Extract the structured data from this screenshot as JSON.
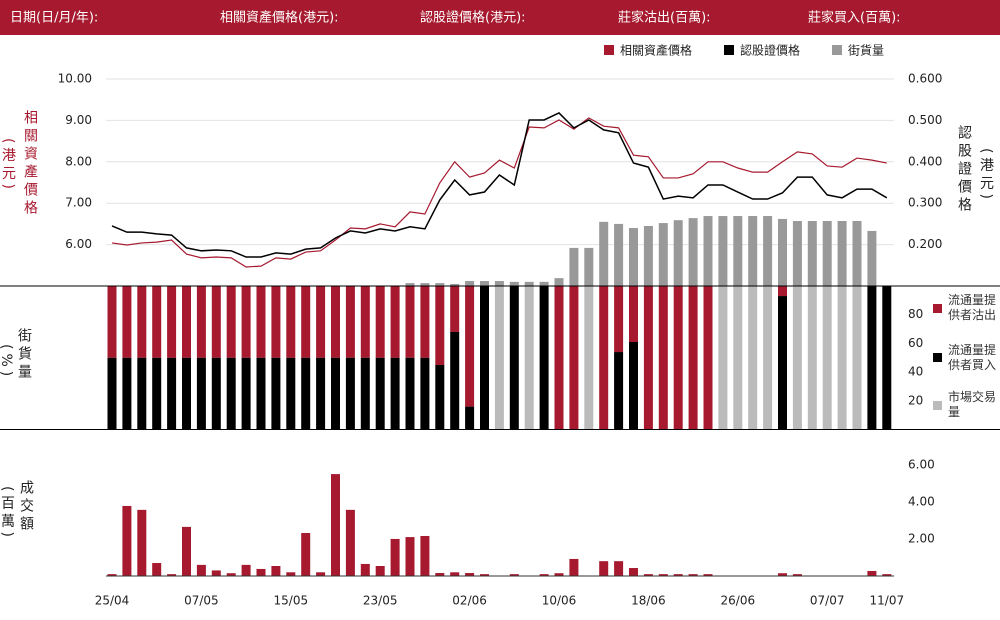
{
  "header": {
    "labels": [
      "日期(日/月/年):",
      "相關資產價格(港元):",
      "認股證價格(港元):",
      "莊家沽出(百萬):",
      "莊家買入(百萬):"
    ]
  },
  "chart_data": [
    {
      "type": "line",
      "y_label": "相關資產價格",
      "y_unit": "(港元)",
      "y2_label": "認股證價格",
      "y2_unit": "(港元)",
      "ylim": [
        5,
        10
      ],
      "yticks": [
        {
          "value": 6,
          "label": "6.00"
        },
        {
          "value": 7,
          "label": "7.00"
        },
        {
          "value": 8,
          "label": "8.00"
        },
        {
          "value": 9,
          "label": "9.00"
        },
        {
          "value": 10,
          "label": "10.00"
        }
      ],
      "y2lim": [
        0.1,
        0.6
      ],
      "y2ticks": [
        {
          "value": 0.2,
          "label": "0.200"
        },
        {
          "value": 0.3,
          "label": "0.300"
        },
        {
          "value": 0.4,
          "label": "0.400"
        },
        {
          "value": 0.5,
          "label": "0.500"
        },
        {
          "value": 0.6,
          "label": "0.600"
        }
      ],
      "grid": true,
      "legend": "top-right",
      "series": [
        {
          "name": "相關資產價格",
          "color": "#a6192e",
          "type": "line",
          "axis": "y",
          "values": [
            6.04,
            5.99,
            6.04,
            6.06,
            6.11,
            5.77,
            5.68,
            5.7,
            5.68,
            5.46,
            5.48,
            5.68,
            5.65,
            5.82,
            5.85,
            6.11,
            6.4,
            6.38,
            6.5,
            6.43,
            6.79,
            6.74,
            7.49,
            8.0,
            7.63,
            7.73,
            8.04,
            7.85,
            8.84,
            8.82,
            9.01,
            8.79,
            9.06,
            8.86,
            8.82,
            8.16,
            8.12,
            7.61,
            7.61,
            7.71,
            8.0,
            8.0,
            7.85,
            7.75,
            7.75,
            8.0,
            8.24,
            8.19,
            7.9,
            7.87,
            8.09,
            8.04,
            7.97
          ]
        },
        {
          "name": "認股證價格",
          "color": "#000000",
          "type": "line",
          "axis": "y2",
          "values": [
            0.245,
            0.23,
            0.23,
            0.226,
            0.223,
            0.192,
            0.185,
            0.187,
            0.185,
            0.17,
            0.17,
            0.18,
            0.177,
            0.189,
            0.192,
            0.216,
            0.233,
            0.228,
            0.238,
            0.233,
            0.243,
            0.238,
            0.308,
            0.356,
            0.32,
            0.327,
            0.368,
            0.344,
            0.501,
            0.501,
            0.518,
            0.482,
            0.501,
            0.477,
            0.47,
            0.397,
            0.387,
            0.31,
            0.317,
            0.313,
            0.344,
            0.344,
            0.327,
            0.31,
            0.31,
            0.325,
            0.363,
            0.363,
            0.32,
            0.313,
            0.334,
            0.334,
            0.313
          ]
        },
        {
          "name": "街貨量",
          "color": "#999999",
          "type": "bar",
          "axis": "y",
          "values": [
            null,
            null,
            null,
            null,
            null,
            null,
            null,
            null,
            null,
            null,
            null,
            null,
            null,
            null,
            null,
            null,
            null,
            null,
            null,
            null,
            5.07,
            5.07,
            5.07,
            5.05,
            5.12,
            5.12,
            5.12,
            5.1,
            5.1,
            5.1,
            5.19,
            5.92,
            5.92,
            6.55,
            6.5,
            6.4,
            6.45,
            6.52,
            6.59,
            6.64,
            6.69,
            6.69,
            6.69,
            6.69,
            6.69,
            6.62,
            6.57,
            6.57,
            6.57,
            6.57,
            6.57,
            6.33,
            null
          ]
        }
      ]
    },
    {
      "type": "stacked_bar",
      "y_label": "街貨量",
      "y_unit": "(%)",
      "ylim": [
        0,
        100
      ],
      "yticks": [
        20,
        40,
        60,
        80
      ],
      "legend": "right",
      "series": [
        {
          "name": "流通量提供者沽出",
          "color": "#a6192e",
          "stack": "top",
          "values": [
            50,
            50,
            50,
            50,
            50,
            50,
            50,
            50,
            50,
            50,
            50,
            50,
            50,
            50,
            50,
            50,
            50,
            50,
            50,
            50,
            50,
            50,
            55,
            32,
            84,
            0,
            0,
            0,
            0,
            0,
            100,
            100,
            0,
            100,
            46,
            39,
            100,
            100,
            100,
            100,
            100,
            0,
            0,
            0,
            0,
            7,
            0,
            0,
            0,
            0,
            0,
            0,
            0
          ]
        },
        {
          "name": "流通量提供者買入",
          "color": "#000000",
          "stack": "bottom",
          "values": [
            50,
            50,
            50,
            50,
            50,
            50,
            50,
            50,
            50,
            50,
            50,
            50,
            50,
            50,
            50,
            50,
            50,
            50,
            50,
            50,
            50,
            50,
            45,
            68,
            16,
            100,
            0,
            100,
            0,
            100,
            0,
            0,
            0,
            0,
            54,
            61,
            0,
            0,
            0,
            0,
            0,
            0,
            0,
            0,
            0,
            93,
            0,
            0,
            0,
            0,
            0,
            100,
            100
          ]
        },
        {
          "name": "市場交易量",
          "color": "#bbbbbb",
          "stack": "alone",
          "values": [
            0,
            0,
            0,
            0,
            0,
            0,
            0,
            0,
            0,
            0,
            0,
            0,
            0,
            0,
            0,
            0,
            0,
            0,
            0,
            0,
            0,
            0,
            0,
            0,
            0,
            0,
            100,
            0,
            100,
            0,
            0,
            0,
            100,
            0,
            0,
            0,
            0,
            0,
            0,
            0,
            0,
            100,
            100,
            100,
            100,
            0,
            100,
            100,
            100,
            100,
            100,
            0,
            0
          ]
        }
      ]
    },
    {
      "type": "bar",
      "y_label": "成交額",
      "y_unit": "(百萬)",
      "color": "#a6192e",
      "ylim": [
        0,
        6.8
      ],
      "yticks": [
        {
          "value": 2,
          "label": "2.00"
        },
        {
          "value": 4,
          "label": "4.00"
        },
        {
          "value": 6,
          "label": "6.00"
        }
      ],
      "categories": [
        "25/04",
        null,
        null,
        null,
        null,
        null,
        "07/05",
        null,
        null,
        null,
        null,
        null,
        "15/05",
        null,
        null,
        null,
        null,
        null,
        "23/05",
        null,
        null,
        null,
        null,
        null,
        "02/06",
        null,
        null,
        null,
        null,
        null,
        "10/06",
        null,
        null,
        null,
        null,
        null,
        "18/06",
        null,
        null,
        null,
        null,
        null,
        "26/06",
        null,
        null,
        null,
        null,
        null,
        "07/07",
        null,
        null,
        null,
        "11/07"
      ],
      "values": [
        0.1,
        3.78,
        3.57,
        0.7,
        0.1,
        2.65,
        0.6,
        0.3,
        0.15,
        0.6,
        0.38,
        0.54,
        0.2,
        2.32,
        0.2,
        5.5,
        3.57,
        0.65,
        0.54,
        2.0,
        2.1,
        2.16,
        0.16,
        0.2,
        0.16,
        0.1,
        0,
        0.1,
        0,
        0.1,
        0.15,
        0.92,
        0,
        0.8,
        0.8,
        0.43,
        0.1,
        0.1,
        0.1,
        0.1,
        0.1,
        0,
        0,
        0,
        0,
        0.15,
        0.1,
        0,
        0,
        0,
        0,
        0.27,
        0.1
      ]
    }
  ]
}
